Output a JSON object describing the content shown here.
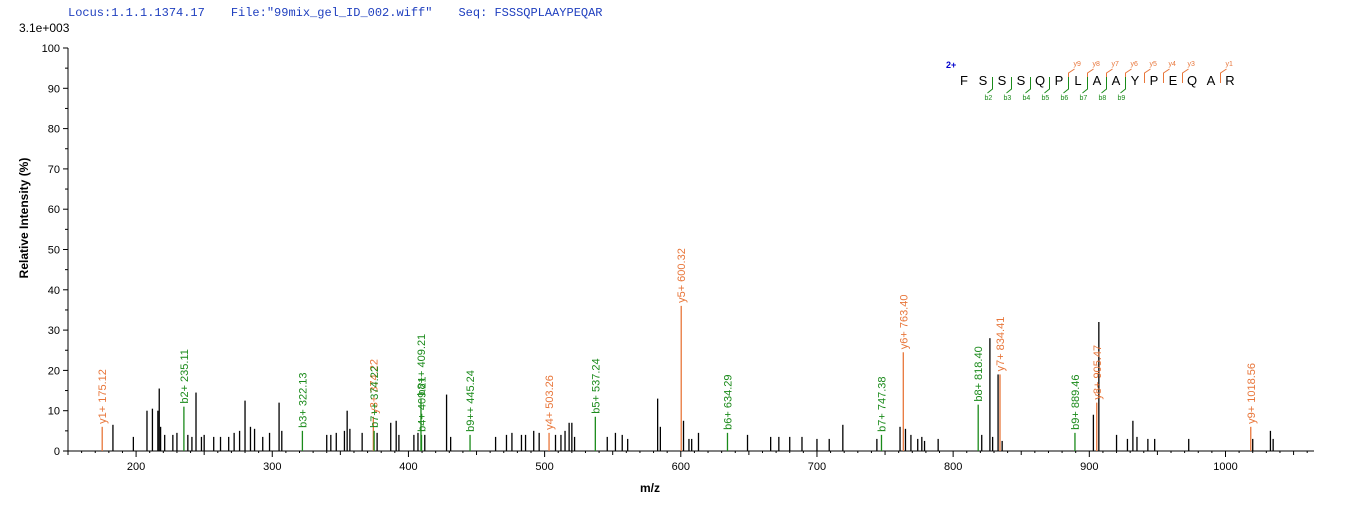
{
  "header": {
    "locus": "Locus:1.1.1.1374.17",
    "file": "File:\"99mix_gel_ID_002.wiff\"",
    "seq": "Seq: FSSSQPLAAYPEQAR"
  },
  "scale_label": "3.1e+003",
  "colors": {
    "y_ion": "#e8763a",
    "b_ion": "#1a8a1a",
    "unassigned": "#000000",
    "header": "#1f3fbf",
    "charge": "#0000cc"
  },
  "chart_data": {
    "type": "bar",
    "xlabel": "m/z",
    "ylabel": "Relative  Intensity (%)",
    "xlim": [
      150,
      1065
    ],
    "ylim": [
      0,
      100
    ],
    "xticks": [
      200,
      300,
      400,
      500,
      600,
      700,
      800,
      900,
      1000
    ],
    "yticks": [
      0,
      10,
      20,
      30,
      40,
      50,
      60,
      70,
      80,
      90,
      100
    ],
    "peaks": [
      {
        "mz": 175.12,
        "i": 6,
        "ion": "y",
        "label": "y1+ 175.12"
      },
      {
        "mz": 183,
        "i": 6.5
      },
      {
        "mz": 198,
        "i": 3.5
      },
      {
        "mz": 208,
        "i": 10
      },
      {
        "mz": 212,
        "i": 10.5
      },
      {
        "mz": 216,
        "i": 10
      },
      {
        "mz": 217,
        "i": 15.5
      },
      {
        "mz": 218,
        "i": 6
      },
      {
        "mz": 221,
        "i": 4
      },
      {
        "mz": 227,
        "i": 4
      },
      {
        "mz": 230,
        "i": 4.5
      },
      {
        "mz": 235.11,
        "i": 11,
        "ion": "b",
        "label": "b2+ 235.11"
      },
      {
        "mz": 238,
        "i": 4
      },
      {
        "mz": 241,
        "i": 3.5
      },
      {
        "mz": 244,
        "i": 14.5
      },
      {
        "mz": 248,
        "i": 3.5
      },
      {
        "mz": 250,
        "i": 4
      },
      {
        "mz": 257,
        "i": 3.5
      },
      {
        "mz": 262,
        "i": 3.5
      },
      {
        "mz": 268,
        "i": 3.5
      },
      {
        "mz": 272,
        "i": 4.5
      },
      {
        "mz": 276,
        "i": 5
      },
      {
        "mz": 280,
        "i": 12.5
      },
      {
        "mz": 284,
        "i": 6
      },
      {
        "mz": 287,
        "i": 5.5
      },
      {
        "mz": 293,
        "i": 3.5
      },
      {
        "mz": 298,
        "i": 4.5
      },
      {
        "mz": 305,
        "i": 12
      },
      {
        "mz": 307,
        "i": 5
      },
      {
        "mz": 322.13,
        "i": 5,
        "ion": "b",
        "label": "b3+ 322.13"
      },
      {
        "mz": 340,
        "i": 4
      },
      {
        "mz": 343,
        "i": 4
      },
      {
        "mz": 347,
        "i": 4.5
      },
      {
        "mz": 353,
        "i": 5
      },
      {
        "mz": 355,
        "i": 10
      },
      {
        "mz": 357,
        "i": 5.5
      },
      {
        "mz": 366,
        "i": 4.5
      },
      {
        "mz": 374.22,
        "i": 8.5,
        "ion": "y",
        "label": "y3+ 374.22"
      },
      {
        "mz": 374.8,
        "i": 5,
        "ion": "b",
        "label": "b7++ 374.22"
      },
      {
        "mz": 377,
        "i": 4.5
      },
      {
        "mz": 387,
        "i": 7
      },
      {
        "mz": 391,
        "i": 7.5
      },
      {
        "mz": 393,
        "i": 4
      },
      {
        "mz": 404,
        "i": 4
      },
      {
        "mz": 407,
        "i": 4.5
      },
      {
        "mz": 409.21,
        "i": 13,
        "ion": "b",
        "label": "b8++ 409.21"
      },
      {
        "mz": 409.6,
        "i": 4,
        "ion": "b",
        "label": "b4+ 409.21"
      },
      {
        "mz": 412,
        "i": 4
      },
      {
        "mz": 428,
        "i": 14
      },
      {
        "mz": 431,
        "i": 3.5
      },
      {
        "mz": 445.24,
        "i": 4,
        "ion": "b",
        "label": "b9++ 445.24"
      },
      {
        "mz": 464,
        "i": 3.5
      },
      {
        "mz": 472,
        "i": 4
      },
      {
        "mz": 476,
        "i": 4.5
      },
      {
        "mz": 483,
        "i": 4
      },
      {
        "mz": 486,
        "i": 4
      },
      {
        "mz": 492,
        "i": 5
      },
      {
        "mz": 496,
        "i": 4.5
      },
      {
        "mz": 503.26,
        "i": 4.5,
        "ion": "y",
        "label": "y4+ 503.26"
      },
      {
        "mz": 508,
        "i": 4
      },
      {
        "mz": 512,
        "i": 4
      },
      {
        "mz": 515,
        "i": 5
      },
      {
        "mz": 518,
        "i": 7
      },
      {
        "mz": 520,
        "i": 7
      },
      {
        "mz": 522,
        "i": 3.5
      },
      {
        "mz": 537.24,
        "i": 8.5,
        "ion": "b",
        "label": "b5+ 537.24"
      },
      {
        "mz": 546,
        "i": 3.5
      },
      {
        "mz": 552,
        "i": 4.5
      },
      {
        "mz": 557,
        "i": 4
      },
      {
        "mz": 561,
        "i": 3
      },
      {
        "mz": 583,
        "i": 13
      },
      {
        "mz": 585,
        "i": 6
      },
      {
        "mz": 600.32,
        "i": 36,
        "ion": "y",
        "label": "y5+ 600.32"
      },
      {
        "mz": 602,
        "i": 7.5
      },
      {
        "mz": 606,
        "i": 3
      },
      {
        "mz": 608,
        "i": 3
      },
      {
        "mz": 613,
        "i": 4.5
      },
      {
        "mz": 634.29,
        "i": 4.5,
        "ion": "b",
        "label": "b6+ 634.29"
      },
      {
        "mz": 649,
        "i": 4
      },
      {
        "mz": 666,
        "i": 3.5
      },
      {
        "mz": 672,
        "i": 3.5
      },
      {
        "mz": 680,
        "i": 3.5
      },
      {
        "mz": 689,
        "i": 3.5
      },
      {
        "mz": 700,
        "i": 3
      },
      {
        "mz": 709,
        "i": 3
      },
      {
        "mz": 719,
        "i": 6.5
      },
      {
        "mz": 744,
        "i": 3
      },
      {
        "mz": 747.38,
        "i": 4,
        "ion": "b",
        "label": "b7+ 747.38"
      },
      {
        "mz": 761,
        "i": 6
      },
      {
        "mz": 763.4,
        "i": 24.5,
        "ion": "y",
        "label": "y6+ 763.40"
      },
      {
        "mz": 765,
        "i": 5.5
      },
      {
        "mz": 769,
        "i": 4
      },
      {
        "mz": 774,
        "i": 3
      },
      {
        "mz": 777,
        "i": 3.5
      },
      {
        "mz": 779,
        "i": 2.5
      },
      {
        "mz": 789,
        "i": 3
      },
      {
        "mz": 818.4,
        "i": 11.5,
        "ion": "b",
        "label": "b8+ 818.40"
      },
      {
        "mz": 821,
        "i": 4
      },
      {
        "mz": 827,
        "i": 28
      },
      {
        "mz": 829,
        "i": 3.5
      },
      {
        "mz": 833,
        "i": 19
      },
      {
        "mz": 834.41,
        "i": 19,
        "ion": "y",
        "label": "y7+ 834.41"
      },
      {
        "mz": 836,
        "i": 2.5
      },
      {
        "mz": 889.46,
        "i": 4.5,
        "ion": "b",
        "label": "b9+ 889.46"
      },
      {
        "mz": 903,
        "i": 9
      },
      {
        "mz": 905.47,
        "i": 12,
        "ion": "y",
        "label": "y8+ 905.47"
      },
      {
        "mz": 907,
        "i": 32
      },
      {
        "mz": 920,
        "i": 4
      },
      {
        "mz": 928,
        "i": 3
      },
      {
        "mz": 932,
        "i": 7.5
      },
      {
        "mz": 935,
        "i": 3.5
      },
      {
        "mz": 943,
        "i": 3
      },
      {
        "mz": 948,
        "i": 3
      },
      {
        "mz": 973,
        "i": 3
      },
      {
        "mz": 1018.56,
        "i": 6,
        "ion": "y",
        "label": "y9+ 1018.56"
      },
      {
        "mz": 1020,
        "i": 3
      },
      {
        "mz": 1033,
        "i": 5
      },
      {
        "mz": 1035,
        "i": 3
      }
    ]
  },
  "sequence_map": {
    "charge": "2+",
    "residues": [
      "F",
      "S",
      "S",
      "S",
      "Q",
      "P",
      "L",
      "A",
      "A",
      "Y",
      "P",
      "E",
      "Q",
      "A",
      "R"
    ],
    "y_labels": [
      {
        "after": 6,
        "text": "y",
        "sub": "9"
      },
      {
        "after": 7,
        "text": "y",
        "sub": "8"
      },
      {
        "after": 8,
        "text": "y",
        "sub": "7"
      },
      {
        "after": 9,
        "text": "y",
        "sub": "6"
      },
      {
        "after": 10,
        "text": "y",
        "sub": "5"
      },
      {
        "after": 11,
        "text": "y",
        "sub": "4"
      },
      {
        "after": 12,
        "text": "y",
        "sub": "3"
      },
      {
        "after": 14,
        "text": "y",
        "sub": "1"
      }
    ],
    "b_labels": [
      {
        "after": 2,
        "text": "b",
        "sub": "2"
      },
      {
        "after": 3,
        "text": "b",
        "sub": "3"
      },
      {
        "after": 4,
        "text": "b",
        "sub": "4"
      },
      {
        "after": 5,
        "text": "b",
        "sub": "5"
      },
      {
        "after": 6,
        "text": "b",
        "sub": "6"
      },
      {
        "after": 7,
        "text": "b",
        "sub": "7"
      },
      {
        "after": 8,
        "text": "b",
        "sub": "8"
      },
      {
        "after": 9,
        "text": "b",
        "sub": "9"
      }
    ]
  }
}
